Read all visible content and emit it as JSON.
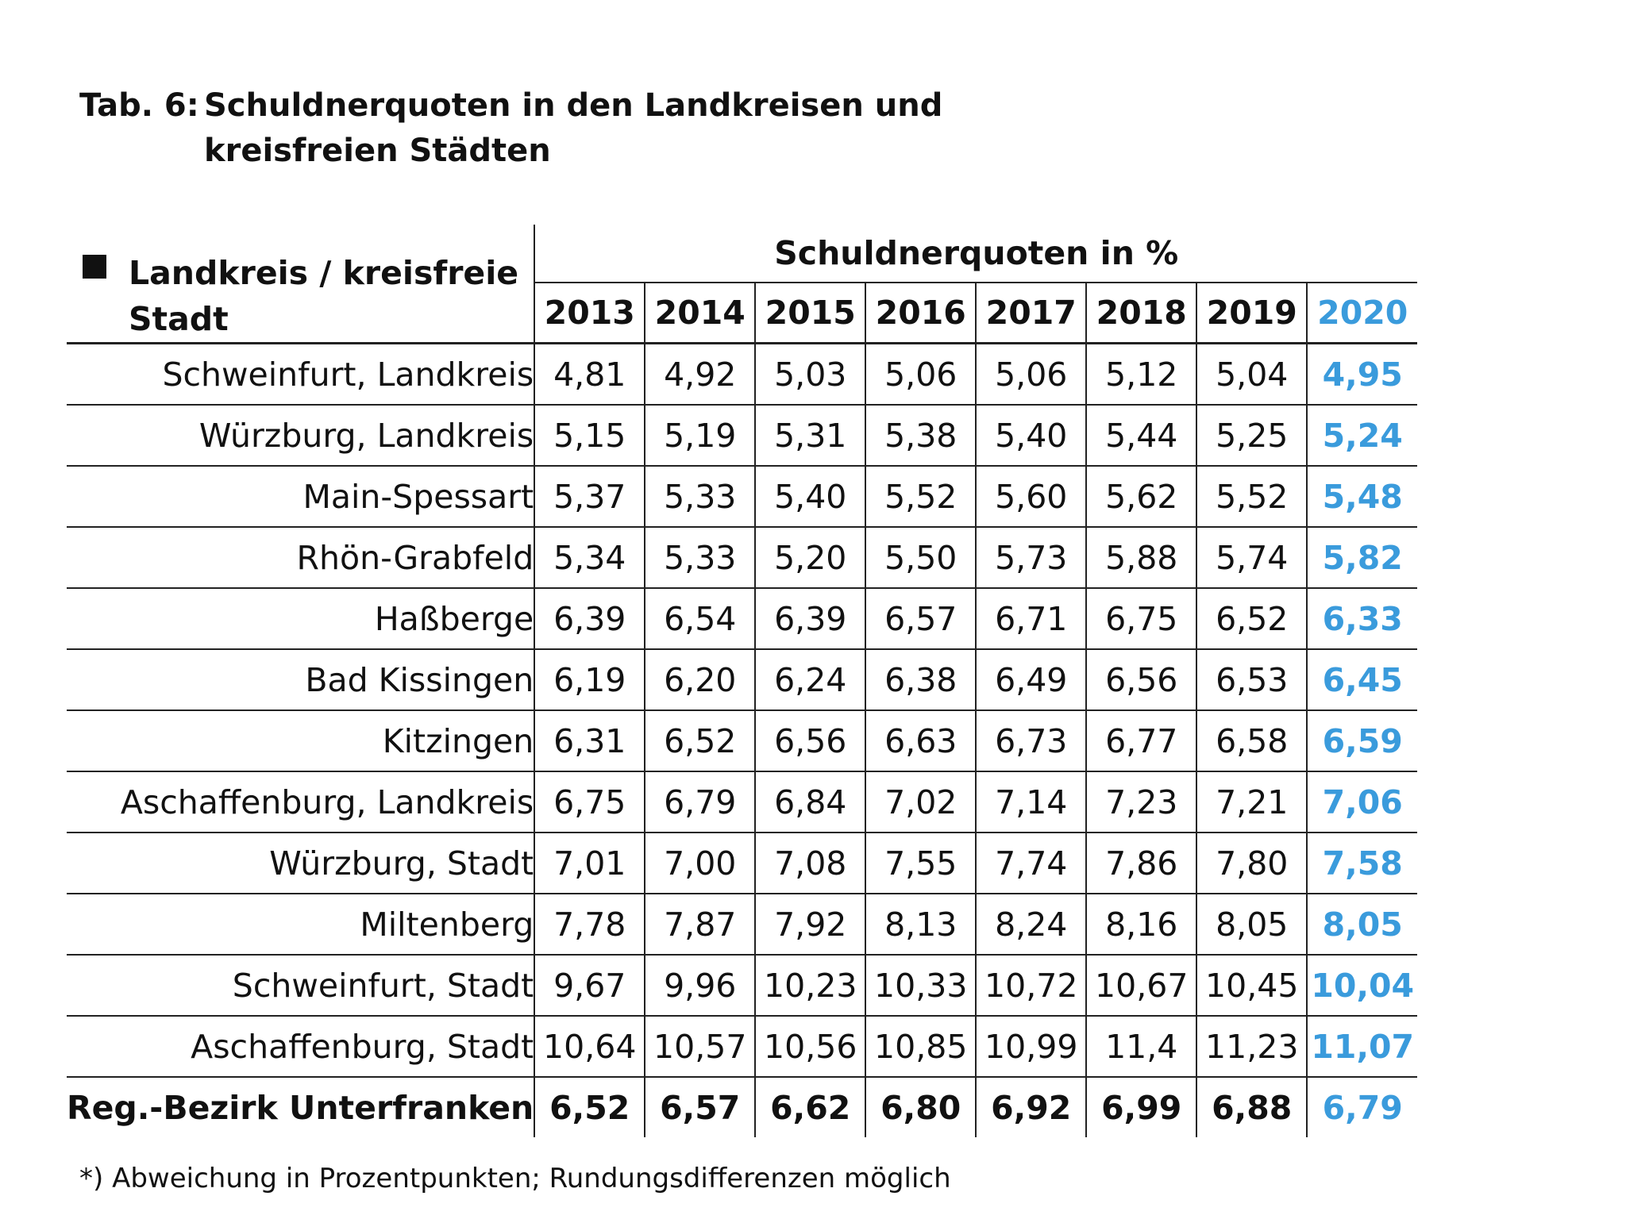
{
  "caption": {
    "label": "Tab. 6:",
    "text": "Schuldnerquoten in den Landkreisen und kreisfreien Städten"
  },
  "table": {
    "corner_header": "Landkreis / kreisfreie Stadt",
    "group_header": "Schuldnerquoten in %",
    "years": [
      "2013",
      "2014",
      "2015",
      "2016",
      "2017",
      "2018",
      "2019",
      "2020"
    ],
    "highlight_color": "#3a9bdc",
    "rows": [
      {
        "name": "Schweinfurt, Landkreis",
        "values": [
          "4,81",
          "4,92",
          "5,03",
          "5,06",
          "5,06",
          "5,12",
          "5,04",
          "4,95"
        ]
      },
      {
        "name": "Würzburg, Landkreis",
        "values": [
          "5,15",
          "5,19",
          "5,31",
          "5,38",
          "5,40",
          "5,44",
          "5,25",
          "5,24"
        ]
      },
      {
        "name": "Main-Spessart",
        "values": [
          "5,37",
          "5,33",
          "5,40",
          "5,52",
          "5,60",
          "5,62",
          "5,52",
          "5,48"
        ]
      },
      {
        "name": "Rhön-Grabfeld",
        "values": [
          "5,34",
          "5,33",
          "5,20",
          "5,50",
          "5,73",
          "5,88",
          "5,74",
          "5,82"
        ]
      },
      {
        "name": "Haßberge",
        "values": [
          "6,39",
          "6,54",
          "6,39",
          "6,57",
          "6,71",
          "6,75",
          "6,52",
          "6,33"
        ]
      },
      {
        "name": "Bad Kissingen",
        "values": [
          "6,19",
          "6,20",
          "6,24",
          "6,38",
          "6,49",
          "6,56",
          "6,53",
          "6,45"
        ]
      },
      {
        "name": "Kitzingen",
        "values": [
          "6,31",
          "6,52",
          "6,56",
          "6,63",
          "6,73",
          "6,77",
          "6,58",
          "6,59"
        ]
      },
      {
        "name": "Aschaffenburg, Landkreis",
        "values": [
          "6,75",
          "6,79",
          "6,84",
          "7,02",
          "7,14",
          "7,23",
          "7,21",
          "7,06"
        ]
      },
      {
        "name": "Würzburg, Stadt",
        "values": [
          "7,01",
          "7,00",
          "7,08",
          "7,55",
          "7,74",
          "7,86",
          "7,80",
          "7,58"
        ]
      },
      {
        "name": "Miltenberg",
        "values": [
          "7,78",
          "7,87",
          "7,92",
          "8,13",
          "8,24",
          "8,16",
          "8,05",
          "8,05"
        ]
      },
      {
        "name": "Schweinfurt, Stadt",
        "values": [
          "9,67",
          "9,96",
          "10,23",
          "10,33",
          "10,72",
          "10,67",
          "10,45",
          "10,04"
        ]
      },
      {
        "name": "Aschaffenburg, Stadt",
        "values": [
          "10,64",
          "10,57",
          "10,56",
          "10,85",
          "10,99",
          "11,4",
          "11,23",
          "11,07"
        ]
      }
    ],
    "total": {
      "name": "Reg.-Bezirk Unterfranken",
      "values": [
        "6,52",
        "6,57",
        "6,62",
        "6,80",
        "6,92",
        "6,99",
        "6,88",
        "6,79"
      ]
    }
  },
  "footnote": "*) Abweichung in Prozentpunkten; Rundungsdifferenzen möglich"
}
